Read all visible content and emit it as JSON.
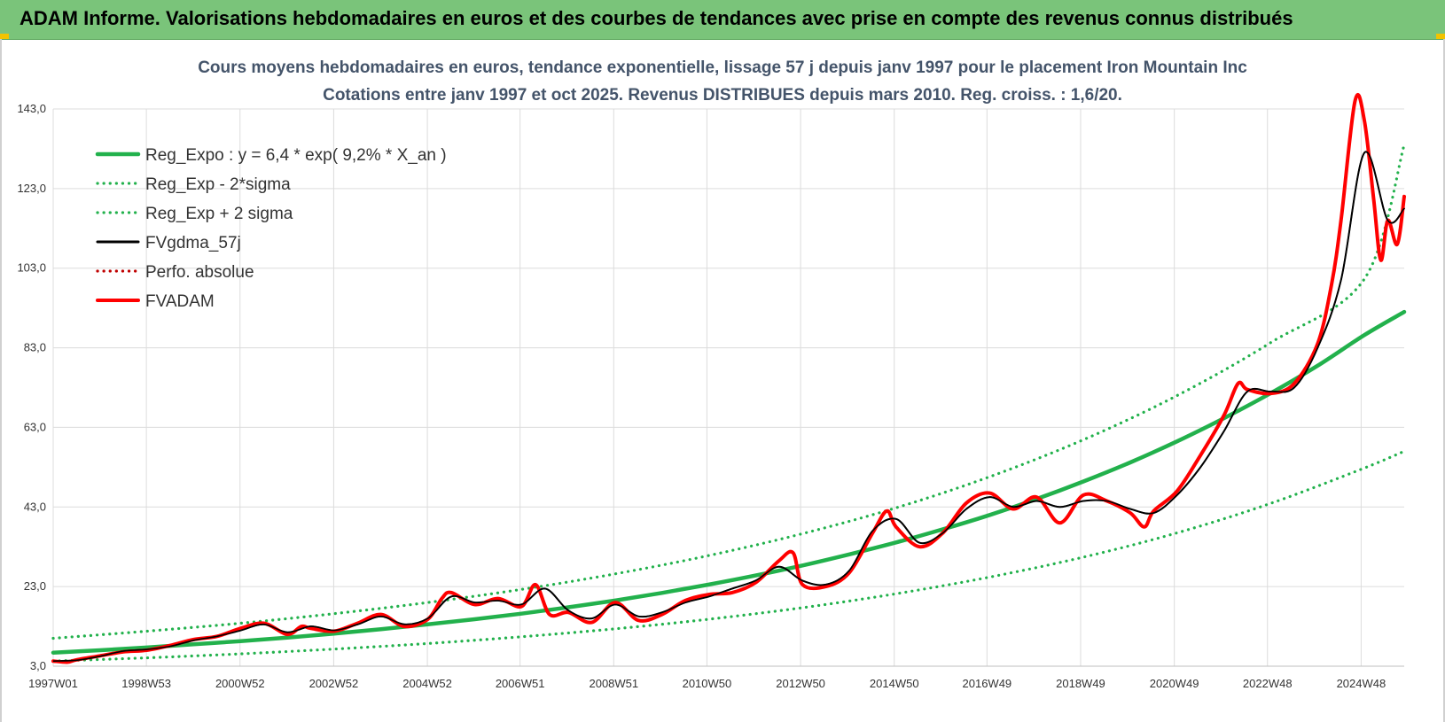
{
  "banner": {
    "title": "ADAM Informe. Valorisations hebdomadaires en euros et des courbes de tendances avec prise en compte des revenus connus distribués"
  },
  "colors": {
    "banner_bg": "#7ac47a",
    "reg_expo": "#22b14c",
    "sigma": "#22b14c",
    "fvgdma": "#000000",
    "perfo": "#c00000",
    "fvadam": "#ff0000",
    "subtitle": "#44546a"
  },
  "chart_data": {
    "type": "line",
    "title_line1": "Cours moyens hebdomadaires en euros, tendance exponentielle, lissage 57 j depuis janv 1997 pour le placement Iron Mountain Inc",
    "title_line2": "Cotations entre janv 1997 et oct 2025. Revenus DISTRIBUES depuis mars 2010. Reg. croiss. : 1,6/20.",
    "ylim": [
      3,
      143
    ],
    "yticks": [
      "3,0",
      "23,0",
      "43,0",
      "63,0",
      "83,0",
      "103,0",
      "123,0",
      "143,0"
    ],
    "xlim": [
      1997.0,
      2025.85
    ],
    "xticks": [
      {
        "label": "1997W01",
        "t": 1997.0
      },
      {
        "label": "1998W53",
        "t": 1998.99
      },
      {
        "label": "2000W52",
        "t": 2000.99
      },
      {
        "label": "2002W52",
        "t": 2002.99
      },
      {
        "label": "2004W52",
        "t": 2004.99
      },
      {
        "label": "2006W51",
        "t": 2006.97
      },
      {
        "label": "2008W51",
        "t": 2008.97
      },
      {
        "label": "2010W50",
        "t": 2010.96
      },
      {
        "label": "2012W50",
        "t": 2012.96
      },
      {
        "label": "2014W50",
        "t": 2014.96
      },
      {
        "label": "2016W49",
        "t": 2016.94
      },
      {
        "label": "2018W49",
        "t": 2018.94
      },
      {
        "label": "2020W49",
        "t": 2020.94
      },
      {
        "label": "2022W48",
        "t": 2022.93
      },
      {
        "label": "2024W48",
        "t": 2024.93
      }
    ],
    "grid": true,
    "legend_position": "top-left",
    "series": [
      {
        "key": "reg_expo",
        "name": "Reg_Expo : y = 6,4 * exp( 9,2% *  X_an )",
        "style": "solid-thick",
        "color": "#22b14c",
        "x": [
          1997.0,
          1998.0,
          1999.0,
          2000.0,
          2001.0,
          2002.0,
          2003.0,
          2004.0,
          2005.0,
          2006.0,
          2007.0,
          2008.0,
          2009.0,
          2010.0,
          2011.0,
          2012.0,
          2013.0,
          2014.0,
          2015.0,
          2016.0,
          2017.0,
          2018.0,
          2019.0,
          2020.0,
          2021.0,
          2022.0,
          2023.0,
          2024.0,
          2025.0,
          2025.85
        ],
        "y": [
          6.4,
          7.0,
          7.7,
          8.5,
          9.3,
          10.2,
          11.2,
          12.3,
          13.5,
          14.8,
          16.2,
          17.8,
          19.5,
          21.4,
          23.5,
          25.8,
          28.3,
          31.1,
          34.1,
          37.4,
          41.0,
          45.0,
          49.4,
          54.2,
          59.5,
          65.3,
          71.6,
          78.5,
          86.2,
          92.0
        ]
      },
      {
        "key": "reg_minus",
        "name": "Reg_Exp - 2*sigma",
        "style": "dotted",
        "color": "#22b14c",
        "x": [
          1997.0,
          1999.0,
          2001.0,
          2003.0,
          2005.0,
          2007.0,
          2009.0,
          2011.0,
          2013.0,
          2015.0,
          2017.0,
          2019.0,
          2021.0,
          2023.0,
          2025.0,
          2025.85
        ],
        "y": [
          4.3,
          5.1,
          6.1,
          7.3,
          8.7,
          10.4,
          12.4,
          14.8,
          17.7,
          21.2,
          25.4,
          30.4,
          36.5,
          43.9,
          52.8,
          57.0
        ]
      },
      {
        "key": "reg_plus",
        "name": "Reg_Exp + 2 sigma",
        "style": "dotted",
        "color": "#22b14c",
        "x": [
          1997.0,
          1999.0,
          2001.0,
          2003.0,
          2005.0,
          2007.0,
          2009.0,
          2011.0,
          2013.0,
          2015.0,
          2017.0,
          2019.0,
          2021.0,
          2023.0,
          2025.0,
          2025.85
        ],
        "y": [
          10.0,
          11.8,
          13.8,
          16.2,
          19.0,
          22.3,
          26.2,
          30.8,
          36.3,
          42.8,
          50.6,
          59.9,
          71.0,
          84.3,
          100.3,
          134.0
        ]
      },
      {
        "key": "fvgdma",
        "name": "FVgdma_57j",
        "style": "solid",
        "color": "#000000",
        "x": [
          1997.0,
          1997.5,
          1998.0,
          1998.5,
          1999.0,
          1999.5,
          2000.0,
          2000.5,
          2001.0,
          2001.5,
          2002.0,
          2002.5,
          2003.0,
          2003.5,
          2004.0,
          2004.5,
          2005.0,
          2005.5,
          2006.0,
          2006.5,
          2007.0,
          2007.5,
          2008.0,
          2008.5,
          2009.0,
          2009.5,
          2010.0,
          2010.5,
          2011.0,
          2011.5,
          2012.0,
          2012.5,
          2013.0,
          2013.5,
          2014.0,
          2014.5,
          2015.0,
          2015.5,
          2016.0,
          2016.5,
          2017.0,
          2017.5,
          2018.0,
          2018.5,
          2019.0,
          2019.5,
          2020.0,
          2020.5,
          2021.0,
          2021.5,
          2022.0,
          2022.5,
          2023.0,
          2023.5,
          2024.0,
          2024.5,
          2025.0,
          2025.5,
          2025.85
        ],
        "y": [
          4.3,
          4.5,
          5.5,
          6.8,
          7.2,
          8.0,
          9.5,
          10.5,
          12.0,
          13.5,
          11.5,
          13.0,
          12.0,
          13.5,
          15.5,
          13.5,
          15.0,
          20.5,
          19.0,
          19.5,
          18.5,
          22.5,
          17.0,
          15.0,
          18.5,
          15.5,
          16.5,
          19.0,
          20.5,
          22.5,
          24.5,
          28.0,
          24.5,
          23.5,
          27.0,
          37.0,
          40.0,
          34.0,
          36.5,
          42.5,
          45.5,
          43.0,
          44.5,
          43.0,
          44.5,
          44.5,
          42.5,
          41.5,
          46.0,
          53.0,
          62.0,
          72.0,
          72.0,
          73.0,
          83.0,
          100.0,
          132.0,
          115.0,
          118.0
        ]
      },
      {
        "key": "perfo",
        "name": "Perfo. absolue",
        "style": "dotted",
        "color": "#c00000",
        "x": [],
        "y": []
      },
      {
        "key": "fvadam",
        "name": "FVADAM",
        "style": "solid-thick",
        "color": "#ff0000",
        "x": [
          1997.0,
          1997.3,
          1997.5,
          1998.0,
          1998.5,
          1999.0,
          1999.5,
          2000.0,
          2000.5,
          2001.0,
          2001.5,
          2002.0,
          2002.3,
          2002.5,
          2003.0,
          2003.5,
          2004.0,
          2004.5,
          2005.0,
          2005.3,
          2005.5,
          2006.0,
          2006.5,
          2007.0,
          2007.3,
          2007.6,
          2008.0,
          2008.5,
          2009.0,
          2009.5,
          2010.0,
          2010.5,
          2011.0,
          2011.5,
          2012.0,
          2012.5,
          2012.8,
          2013.0,
          2013.5,
          2014.0,
          2014.5,
          2014.8,
          2015.0,
          2015.5,
          2016.0,
          2016.5,
          2017.0,
          2017.5,
          2018.0,
          2018.5,
          2019.0,
          2019.5,
          2020.0,
          2020.3,
          2020.5,
          2021.0,
          2021.5,
          2022.0,
          2022.3,
          2022.5,
          2023.0,
          2023.5,
          2024.0,
          2024.3,
          2024.5,
          2024.8,
          2025.0,
          2025.2,
          2025.35,
          2025.5,
          2025.7,
          2025.85
        ],
        "y": [
          4.3,
          4.0,
          4.6,
          5.6,
          6.6,
          7.0,
          8.2,
          9.7,
          10.5,
          12.5,
          13.8,
          11.0,
          13.0,
          12.5,
          11.8,
          13.8,
          16.0,
          13.0,
          14.8,
          20.0,
          21.5,
          18.5,
          20.0,
          18.0,
          23.5,
          16.0,
          16.5,
          14.0,
          19.0,
          14.5,
          16.0,
          19.5,
          21.0,
          21.5,
          24.0,
          29.5,
          31.5,
          23.5,
          23.0,
          26.5,
          36.5,
          42.0,
          38.0,
          33.0,
          36.5,
          44.0,
          46.5,
          42.5,
          45.5,
          39.0,
          46.0,
          44.5,
          41.5,
          38.0,
          42.0,
          47.0,
          56.0,
          66.0,
          74.0,
          72.5,
          71.5,
          74.0,
          84.0,
          99.0,
          115.0,
          145.0,
          140.0,
          120.0,
          105.0,
          115.0,
          109.0,
          121.0
        ]
      }
    ]
  }
}
